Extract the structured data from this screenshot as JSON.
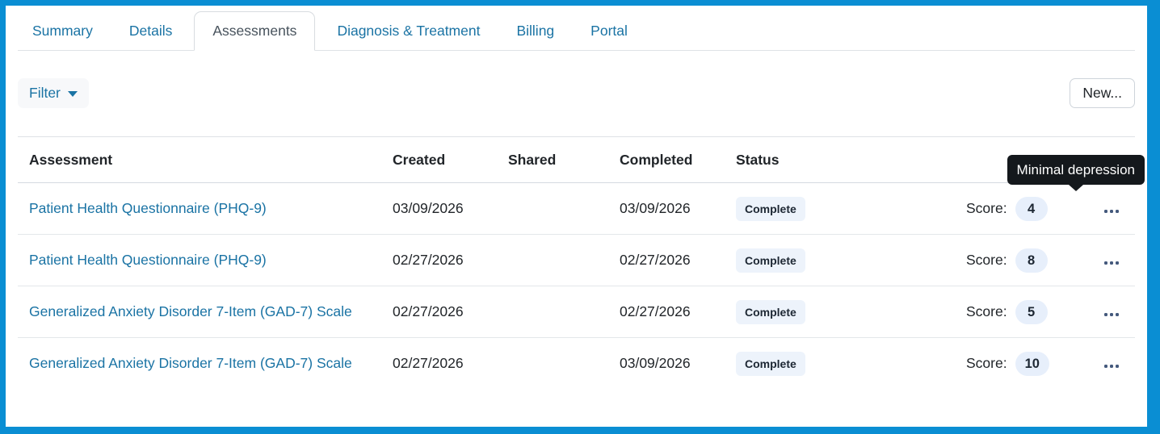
{
  "tabs": [
    {
      "label": "Summary",
      "active": false
    },
    {
      "label": "Details",
      "active": false
    },
    {
      "label": "Assessments",
      "active": true
    },
    {
      "label": "Diagnosis & Treatment",
      "active": false
    },
    {
      "label": "Billing",
      "active": false
    },
    {
      "label": "Portal",
      "active": false
    }
  ],
  "toolbar": {
    "filter_label": "Filter",
    "new_label": "New..."
  },
  "table": {
    "headers": {
      "assessment": "Assessment",
      "created": "Created",
      "shared": "Shared",
      "completed": "Completed",
      "status": "Status"
    },
    "rows": [
      {
        "assessment": "Patient Health Questionnaire (PHQ-9)",
        "created": "03/09/2026",
        "shared": "",
        "completed": "03/09/2026",
        "status": "Complete",
        "score_label": "Score:",
        "score": "4"
      },
      {
        "assessment": "Patient Health Questionnaire (PHQ-9)",
        "created": "02/27/2026",
        "shared": "",
        "completed": "02/27/2026",
        "status": "Complete",
        "score_label": "Score:",
        "score": "8"
      },
      {
        "assessment": "Generalized Anxiety Disorder 7-Item (GAD-7) Scale",
        "created": "02/27/2026",
        "shared": "",
        "completed": "02/27/2026",
        "status": "Complete",
        "score_label": "Score:",
        "score": "5"
      },
      {
        "assessment": "Generalized Anxiety Disorder 7-Item (GAD-7) Scale",
        "created": "02/27/2026",
        "shared": "",
        "completed": "03/09/2026",
        "status": "Complete",
        "score_label": "Score:",
        "score": "10"
      }
    ]
  },
  "tooltip": {
    "text": "Minimal depression"
  },
  "icons": {
    "filter_caret": "caret-down",
    "row_menu": "ellipsis"
  },
  "colors": {
    "frame_blue": "#0a8ed3",
    "link_blue": "#1a73a4",
    "active_tab_text": "#47525c",
    "tooltip_bg": "#14181c",
    "status_badge_bg": "#edf3fb",
    "score_badge_bg": "#e7effb",
    "divider": "#dee2e6"
  }
}
